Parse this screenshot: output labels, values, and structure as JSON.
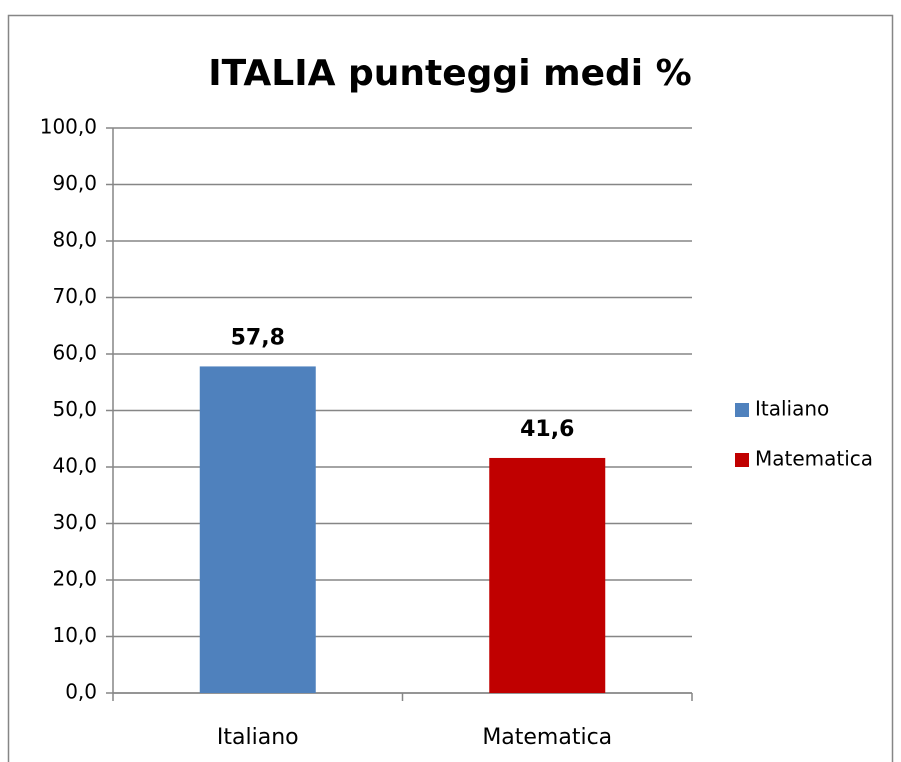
{
  "chart_data": {
    "type": "bar",
    "title": "ITALIA punteggi medi %",
    "categories": [
      "Italiano",
      "Matematica"
    ],
    "series": [
      {
        "name": "Italiano",
        "color": "#4f81bd",
        "values": [
          57.8,
          null
        ],
        "value_labels": [
          "57,8",
          null
        ]
      },
      {
        "name": "Matematica",
        "color": "#c00000",
        "values": [
          null,
          41.6
        ],
        "value_labels": [
          null,
          "41,6"
        ]
      }
    ],
    "ylim": [
      0,
      100
    ],
    "yticks": [
      {
        "value": 0,
        "label": "0,0"
      },
      {
        "value": 10,
        "label": "10,0"
      },
      {
        "value": 20,
        "label": "20,0"
      },
      {
        "value": 30,
        "label": "30,0"
      },
      {
        "value": 40,
        "label": "40,0"
      },
      {
        "value": 50,
        "label": "50,0"
      },
      {
        "value": 60,
        "label": "60,0"
      },
      {
        "value": 70,
        "label": "70,0"
      },
      {
        "value": 80,
        "label": "80,0"
      },
      {
        "value": 90,
        "label": "90,0"
      },
      {
        "value": 100,
        "label": "100,0"
      }
    ],
    "grid": true,
    "legend": "right"
  }
}
